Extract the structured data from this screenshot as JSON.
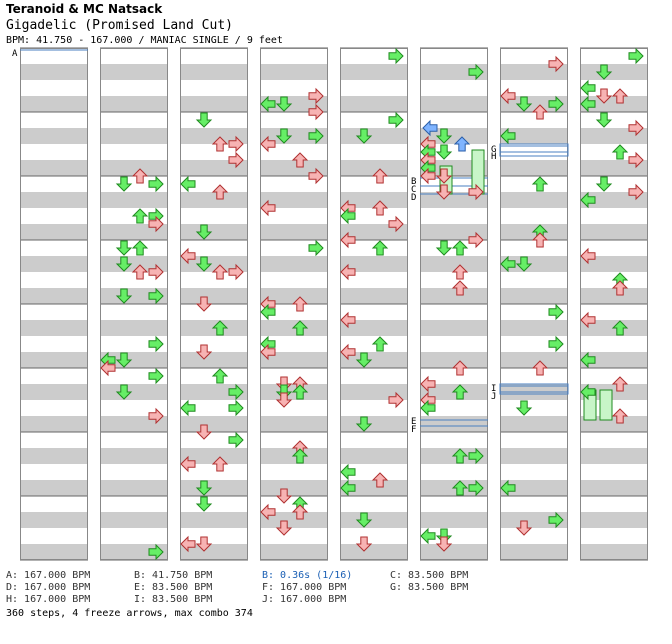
{
  "header": {
    "artist": "Teranoid & MC Natsack",
    "title": "Gigadelic (Promised Land Cut)",
    "info": "BPM: 41.750 - 167.000 / MANIAC SINGLE / 9 feet"
  },
  "markers": {
    "A": "A",
    "B": "B",
    "C": "C",
    "D": "D",
    "E": "E",
    "F": "F",
    "G": "G",
    "H": "H",
    "I": "I",
    "J": "J"
  },
  "legend": [
    {
      "text": "A: 167.000 BPM",
      "kind": "bpm"
    },
    {
      "text": "B: 41.750 BPM",
      "kind": "bpm"
    },
    {
      "text": "B: 0.36s (1/16)",
      "kind": "stop"
    },
    {
      "text": "C: 83.500 BPM",
      "kind": "bpm"
    },
    {
      "text": "D: 167.000 BPM",
      "kind": "bpm"
    },
    {
      "text": "E: 83.500 BPM",
      "kind": "bpm"
    },
    {
      "text": "F: 167.000 BPM",
      "kind": "bpm"
    },
    {
      "text": "G: 83.500 BPM",
      "kind": "bpm"
    },
    {
      "text": "H: 167.000 BPM",
      "kind": "bpm"
    },
    {
      "text": "I: 83.500 BPM",
      "kind": "bpm"
    },
    {
      "text": "J: 167.000 BPM",
      "kind": "bpm"
    }
  ],
  "footer": "360 steps, 4 freeze arrows, max combo 374",
  "colors": {
    "stripe": "#cccccc",
    "border": "#888888",
    "quarter_fill": "#f7b3b3",
    "quarter_stroke": "#b03030",
    "eighth_fill": "#66ee66",
    "eighth_stroke": "#1f8a1f",
    "sixteenth_fill": "#7fb4ff",
    "sixteenth_stroke": "#2a5ea8",
    "freeze_fill": "#c8f5c8",
    "marker_line": "#4a7fc1"
  }
}
